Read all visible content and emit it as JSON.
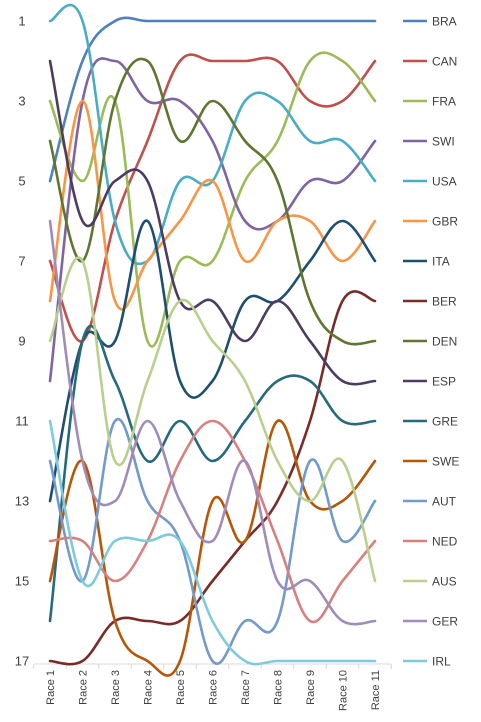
{
  "chart_data": {
    "type": "line",
    "title": "",
    "xlabel": "",
    "ylabel": "",
    "ylim": [
      1,
      17
    ],
    "y_reversed": true,
    "y_ticks": [
      1,
      3,
      5,
      7,
      9,
      11,
      13,
      15,
      17
    ],
    "grid": false,
    "legend_position": "right",
    "categories": [
      "Race 1",
      "Race 2",
      "Race 3",
      "Race 4",
      "Race 5",
      "Race 6",
      "Race 7",
      "Race 8",
      "Race 9",
      "Race 10",
      "Race 11"
    ],
    "series": [
      {
        "name": "BRA",
        "color": "#4f81bd",
        "values": [
          5,
          2,
          1,
          1,
          1,
          1,
          1,
          1,
          1,
          1,
          1
        ]
      },
      {
        "name": "CAN",
        "color": "#c0504d",
        "values": [
          7,
          9,
          6,
          4,
          2,
          2,
          2,
          2,
          3,
          3,
          2
        ]
      },
      {
        "name": "FRA",
        "color": "#9bbb59",
        "values": [
          3,
          5,
          3,
          9,
          7,
          7,
          5,
          4,
          2,
          2,
          3
        ]
      },
      {
        "name": "SWI",
        "color": "#8064a2",
        "values": [
          10,
          3,
          2,
          3,
          3,
          4,
          6,
          6,
          5,
          5,
          4
        ]
      },
      {
        "name": "USA",
        "color": "#4bacc6",
        "values": [
          1,
          1,
          6,
          7,
          5,
          5,
          3,
          3,
          4,
          4,
          5
        ]
      },
      {
        "name": "GBR",
        "color": "#f79646",
        "values": [
          8,
          3,
          8,
          7,
          6,
          5,
          7,
          6,
          6,
          7,
          6
        ]
      },
      {
        "name": "ITA",
        "color": "#1f4e6e",
        "values": [
          13,
          9,
          9,
          6,
          10,
          10,
          8,
          8,
          7,
          6,
          7
        ]
      },
      {
        "name": "BER",
        "color": "#772c2a",
        "values": [
          17,
          17,
          16,
          16,
          16,
          15,
          14,
          13,
          11,
          8,
          8
        ]
      },
      {
        "name": "DEN",
        "color": "#5f7530",
        "values": [
          4,
          7,
          3,
          2,
          4,
          3,
          4,
          5,
          8,
          9,
          9
        ]
      },
      {
        "name": "ESP",
        "color": "#4d3b62",
        "values": [
          2,
          6,
          5,
          5,
          8,
          8,
          9,
          8,
          9,
          10,
          10
        ]
      },
      {
        "name": "GRE",
        "color": "#276a7c",
        "values": [
          16,
          9,
          10,
          12,
          11,
          12,
          11,
          10,
          10,
          11,
          11
        ]
      },
      {
        "name": "SWE",
        "color": "#b65708",
        "values": [
          15,
          12,
          16,
          17,
          17,
          13,
          14,
          11,
          13,
          13,
          12
        ]
      },
      {
        "name": "AUT",
        "color": "#729aca",
        "values": [
          12,
          15,
          11,
          13,
          14,
          17,
          16,
          16,
          12,
          14,
          13
        ]
      },
      {
        "name": "NED",
        "color": "#d7807f",
        "values": [
          14,
          14,
          15,
          14,
          12,
          11,
          12,
          14,
          16,
          15,
          14
        ]
      },
      {
        "name": "AUS",
        "color": "#b9cf8e",
        "values": [
          9,
          7,
          12,
          10,
          8,
          9,
          10,
          12,
          13,
          12,
          15
        ]
      },
      {
        "name": "GER",
        "color": "#a08cba",
        "values": [
          6,
          12,
          13,
          11,
          13,
          14,
          12,
          15,
          15,
          16,
          16
        ]
      },
      {
        "name": "IRL",
        "color": "#7fcbde",
        "values": [
          11,
          15,
          14,
          14,
          14,
          16,
          17,
          17,
          17,
          17,
          17
        ]
      }
    ]
  }
}
